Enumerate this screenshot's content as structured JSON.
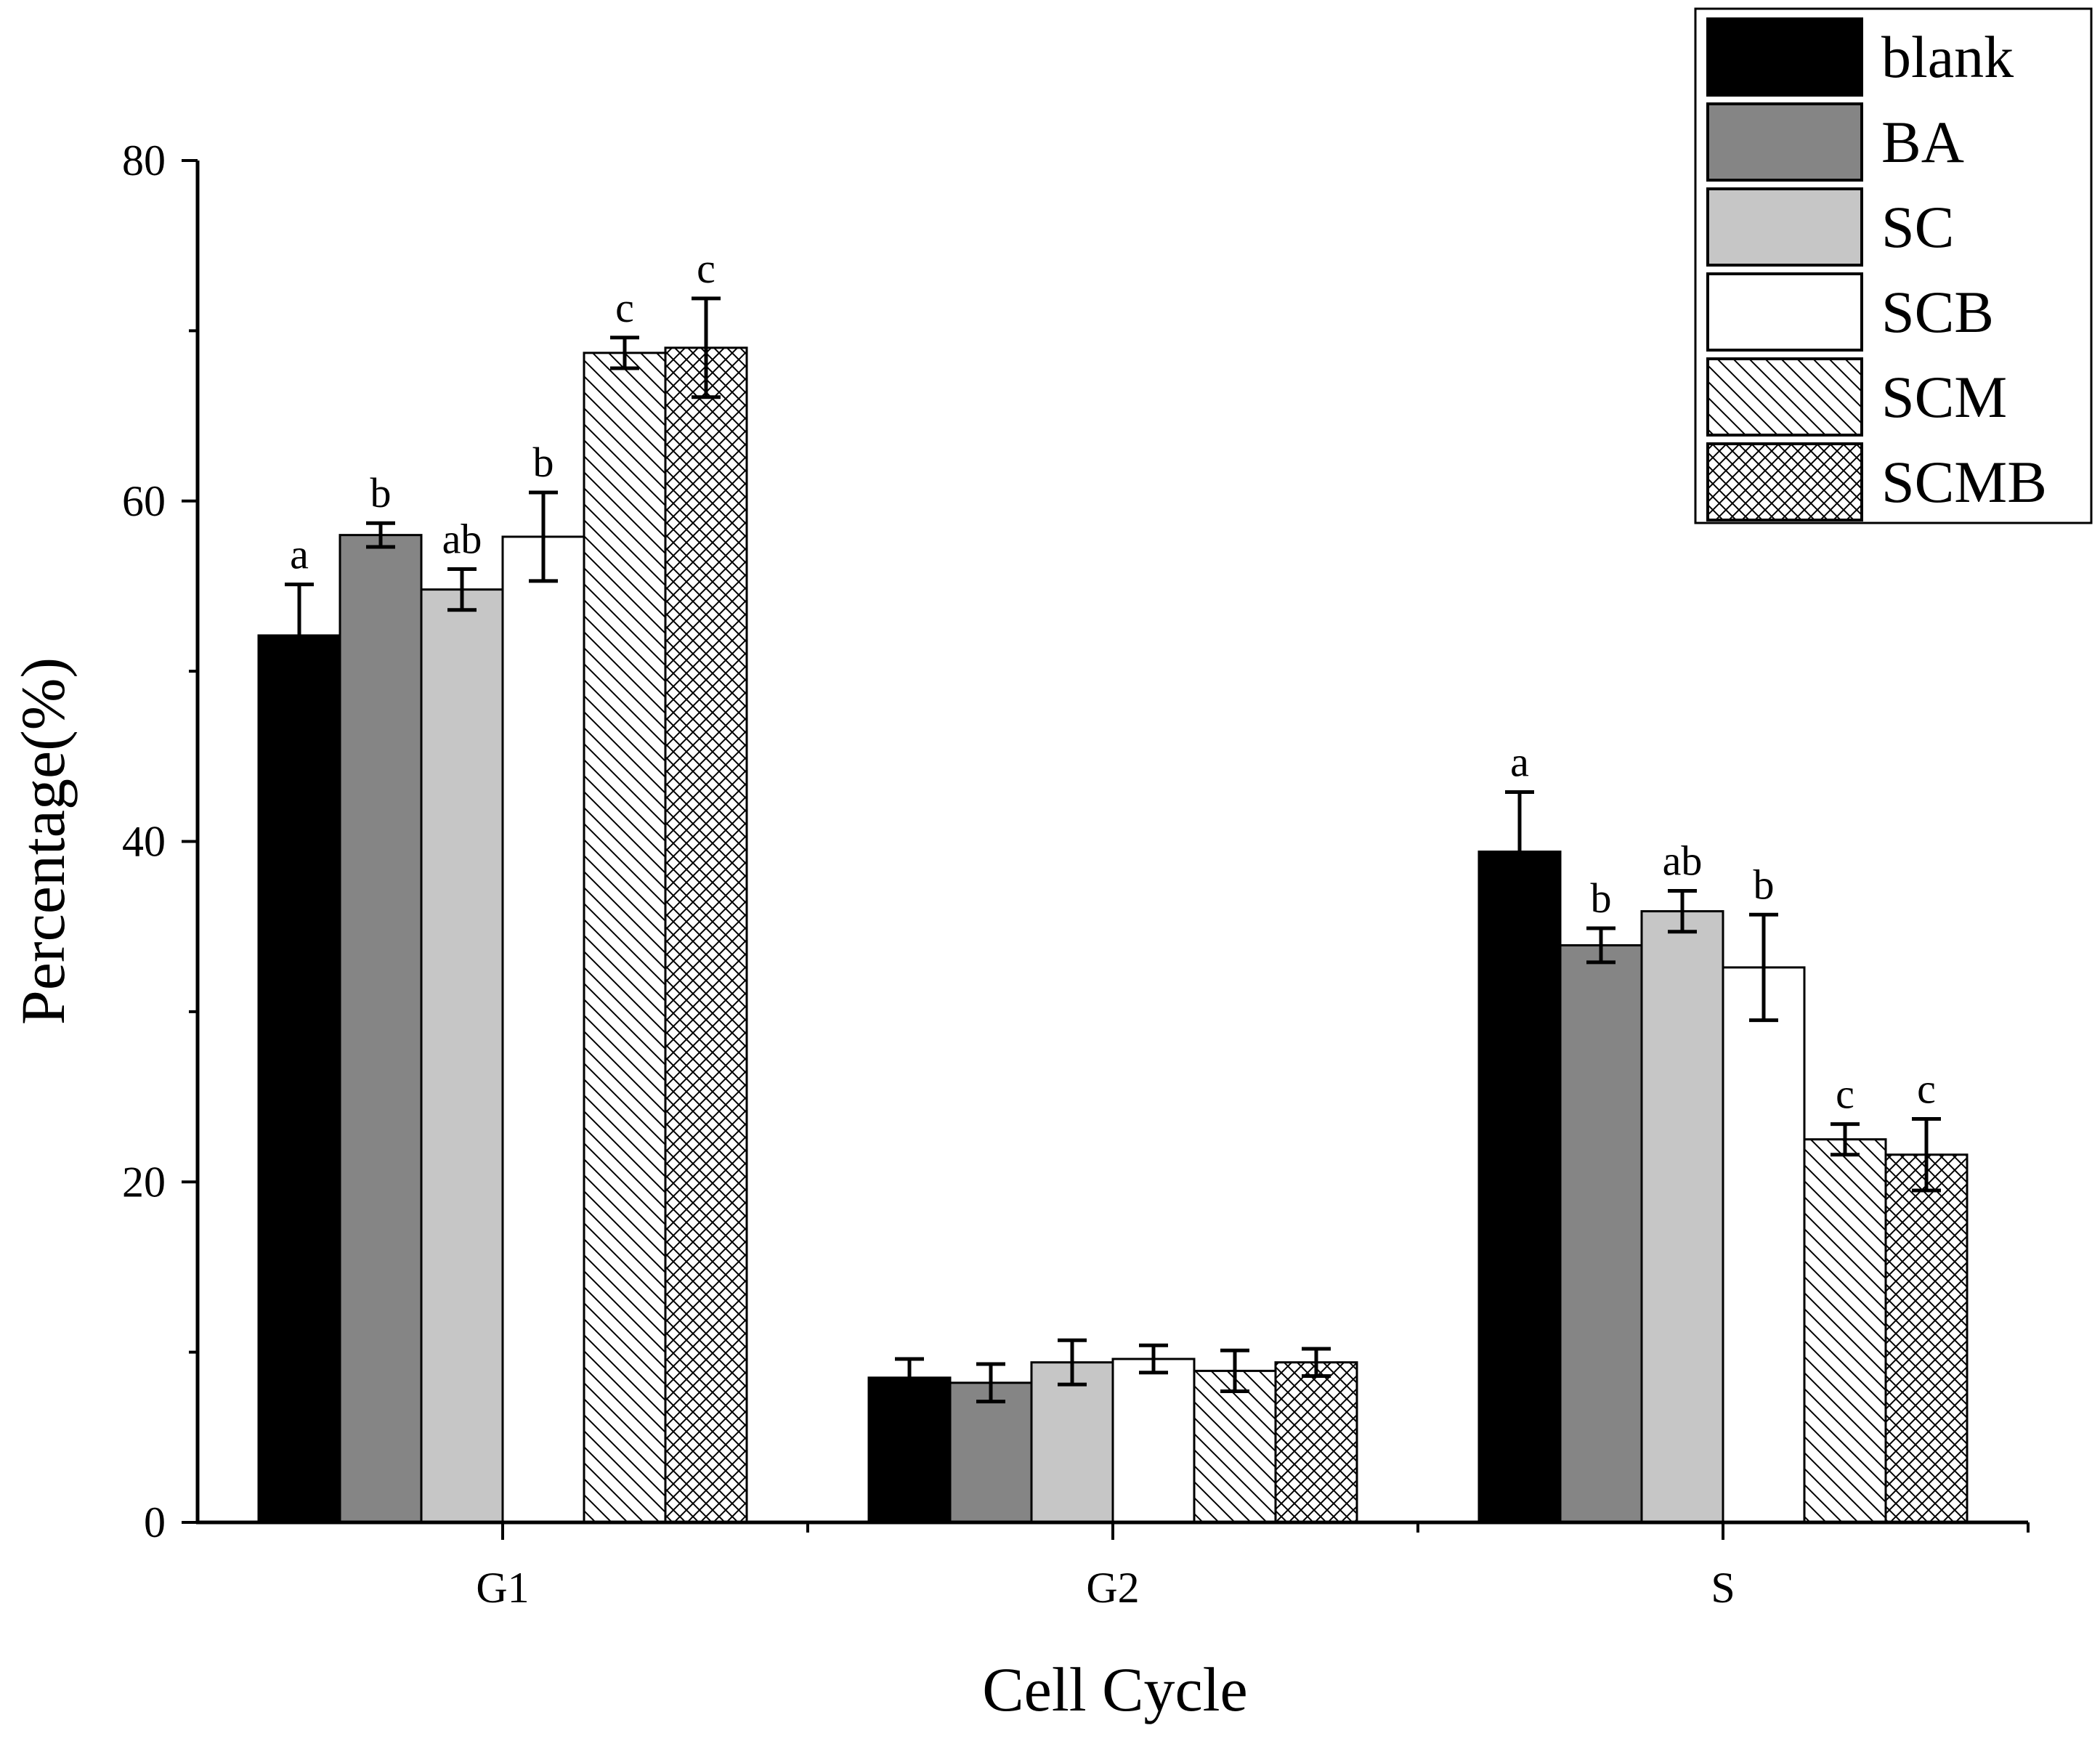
{
  "chart_data": {
    "type": "bar",
    "xlabel": "Cell Cycle",
    "ylabel": "Percentage(%)",
    "ylim": [
      0,
      80
    ],
    "yticks": [
      0,
      20,
      40,
      60,
      80
    ],
    "categories": [
      "G1",
      "G2",
      "S"
    ],
    "legend_position": "top-right",
    "series": [
      {
        "name": "blank",
        "fill": "#000000",
        "pattern": "solid",
        "values": [
          52.1,
          8.5,
          39.4
        ],
        "errors": [
          3.0,
          1.1,
          3.5
        ],
        "labels": [
          "a",
          "",
          "a"
        ]
      },
      {
        "name": "BA",
        "fill": "#858585",
        "pattern": "solid",
        "values": [
          58.0,
          8.2,
          33.9
        ],
        "errors": [
          0.7,
          1.1,
          1.0
        ],
        "labels": [
          "b",
          "",
          "b"
        ]
      },
      {
        "name": "SC",
        "fill": "#c6c6c6",
        "pattern": "solid",
        "values": [
          54.8,
          9.4,
          35.9
        ],
        "errors": [
          1.2,
          1.3,
          1.2
        ],
        "labels": [
          "ab",
          "",
          "ab"
        ]
      },
      {
        "name": "SCB",
        "fill": "#ffffff",
        "pattern": "solid",
        "values": [
          57.9,
          9.6,
          32.6
        ],
        "errors": [
          2.6,
          0.8,
          3.1
        ],
        "labels": [
          "b",
          "",
          "b"
        ]
      },
      {
        "name": "SCM",
        "fill": "#ffffff",
        "pattern": "diagonal",
        "values": [
          68.7,
          8.9,
          22.5
        ],
        "errors": [
          0.9,
          1.2,
          0.9
        ],
        "labels": [
          "c",
          "",
          "c"
        ]
      },
      {
        "name": "SCMB",
        "fill": "#ffffff",
        "pattern": "crosshatch",
        "values": [
          69.0,
          9.4,
          21.6
        ],
        "errors": [
          2.9,
          0.8,
          2.1
        ],
        "labels": [
          "c",
          "",
          "c"
        ]
      }
    ]
  }
}
